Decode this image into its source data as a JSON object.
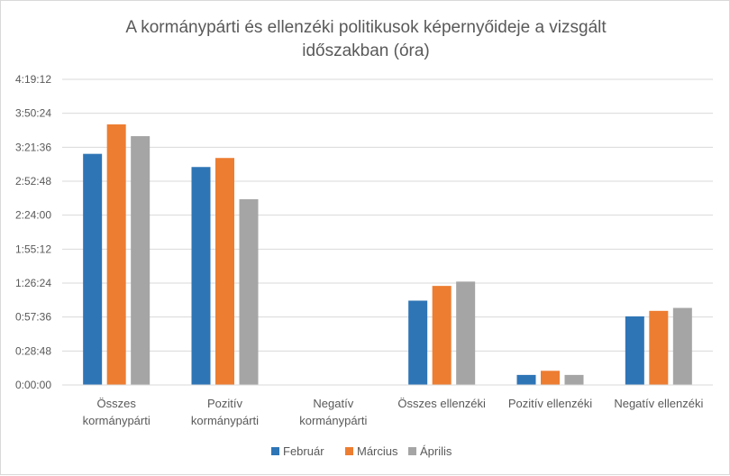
{
  "chart_data": {
    "type": "bar",
    "title": "A kormánypárti és ellenzéki politikusok képernyőideje a vizsgált időszakban (óra)",
    "title_lines": [
      "A kormánypárti és ellenzéki politikusok képernyőideje a vizsgált",
      "időszakban (óra)"
    ],
    "categories": [
      [
        "Összes",
        "kormánypárti"
      ],
      [
        "Pozitív",
        "kormánypárti"
      ],
      [
        "Negatív",
        "kormánypárti"
      ],
      [
        "Összes ellenzéki"
      ],
      [
        "Pozitív ellenzéki"
      ],
      [
        "Negatív ellenzéki"
      ]
    ],
    "series": [
      {
        "name": "Február",
        "color": "#2e75b6",
        "values": [
          11760,
          11090,
          0,
          4290,
          510,
          3490
        ]
      },
      {
        "name": "Március",
        "color": "#ed7d31",
        "values": [
          13260,
          11550,
          0,
          5040,
          720,
          3770
        ]
      },
      {
        "name": "Április",
        "color": "#a5a5a5",
        "values": [
          12660,
          9450,
          0,
          5260,
          510,
          3920
        ]
      }
    ],
    "y_ticks": [
      "0:00:00",
      "0:28:48",
      "0:57:36",
      "1:26:24",
      "1:55:12",
      "2:24:00",
      "2:52:48",
      "3:21:36",
      "3:50:24",
      "4:19:12"
    ],
    "y_tick_values": [
      0,
      1728,
      3456,
      5184,
      6912,
      8640,
      10368,
      12096,
      13824,
      15552
    ],
    "ylim": [
      0,
      15552
    ],
    "y_unit": "seconds",
    "grid": true,
    "legend_position": "bottom"
  }
}
